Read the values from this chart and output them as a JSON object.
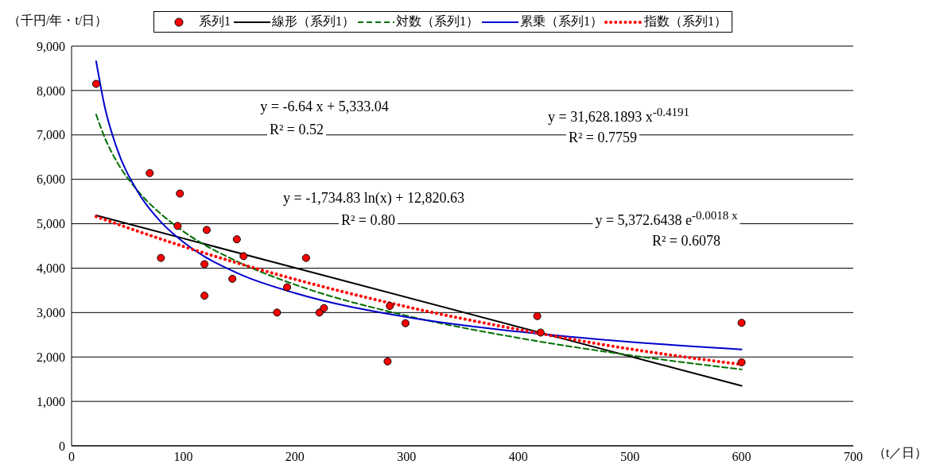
{
  "chart_data": {
    "type": "scatter",
    "xlim": [
      0,
      700
    ],
    "xticks": [
      0,
      100,
      200,
      300,
      400,
      500,
      600,
      700
    ],
    "ylim": [
      0,
      9000
    ],
    "yticks": [
      0,
      {
        "value": 1000,
        "label": "1,000"
      },
      {
        "value": 2000,
        "label": "2,000"
      },
      {
        "value": 3000,
        "label": "3,000"
      },
      {
        "value": 4000,
        "label": "4,000"
      },
      {
        "value": 5000,
        "label": "5,000"
      },
      {
        "value": 6000,
        "label": "6,000"
      },
      {
        "value": 7000,
        "label": "7,000"
      },
      {
        "value": 8000,
        "label": "8,000"
      },
      {
        "value": 9000,
        "label": "9,000"
      }
    ],
    "xlabel": "（t／日）",
    "ylabel": "（千円/年・t/日）",
    "grid": "y",
    "legend": "top",
    "series": [
      {
        "name": "系列1",
        "marker": "circle",
        "color": "#ff0000",
        "x": [
          22,
          70,
          80,
          97,
          95,
          121,
          119,
          119,
          144,
          148,
          154,
          184,
          193,
          210,
          222,
          226,
          283,
          285,
          299,
          417,
          420,
          600,
          600
        ],
        "values": [
          8150,
          6140,
          4230,
          5680,
          4950,
          4860,
          4090,
          3380,
          3760,
          4650,
          4270,
          3000,
          3570,
          4230,
          3000,
          3100,
          1900,
          3150,
          2760,
          2920,
          2550,
          2770,
          1880
        ]
      },
      {
        "name": "線形（系列1）",
        "type": "line",
        "marker": "none",
        "line_style": "solid",
        "color": "#000000",
        "x": [
          22,
          600
        ],
        "values": [
          5190,
          1350
        ]
      },
      {
        "name": "対数（系列1）",
        "type": "line",
        "marker": "none",
        "line_style": "dashed",
        "color": "#007000",
        "x": [
          22,
          30,
          40,
          60,
          80,
          100,
          150,
          200,
          300,
          400,
          500,
          600
        ],
        "values": [
          7460,
          6920,
          6420,
          5720,
          5220,
          4830,
          4130,
          3630,
          2930,
          2430,
          2040,
          1720
        ]
      },
      {
        "name": "累乗（系列1）",
        "type": "line",
        "marker": "none",
        "line_style": "solid",
        "color": "#0000cc",
        "x": [
          22,
          30,
          40,
          60,
          80,
          100,
          150,
          200,
          300,
          400,
          500,
          600
        ],
        "values": [
          8660,
          7600,
          6740,
          5690,
          5040,
          4590,
          3870,
          3440,
          2900,
          2570,
          2340,
          2170
        ]
      },
      {
        "name": "指数（系列1）",
        "type": "line",
        "marker": "none",
        "line_style": "dotted",
        "color": "#ff0000",
        "x": [
          22,
          100,
          200,
          300,
          400,
          500,
          600
        ],
        "values": [
          5160,
          4490,
          3750,
          3130,
          2620,
          2180,
          1830
        ]
      }
    ],
    "annotations": [
      "y = -6.64 x + 5,333.04",
      "R² = 0.52",
      "y = -1,734.83 ln(x) + 12,820.63",
      "R² = 0.80",
      "y = 31,628.1893 x$^{-0.4191}$",
      "R² = 0.7759",
      "y = 5,372.6438 e$^{-0.0018 x}$",
      "R² = 0.6078"
    ]
  }
}
